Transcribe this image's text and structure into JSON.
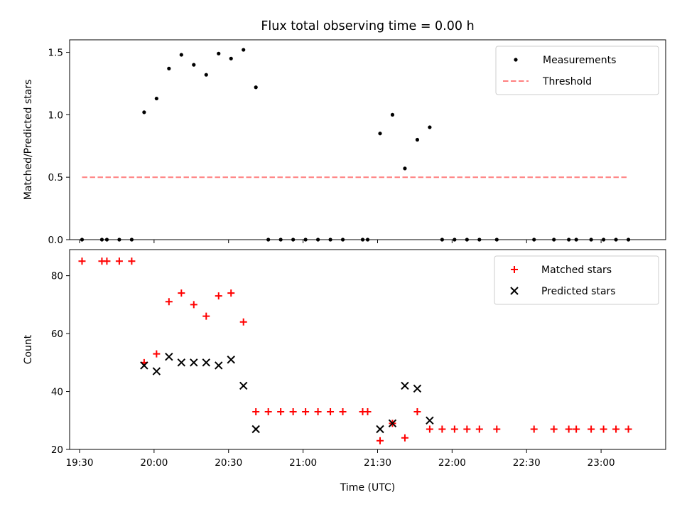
{
  "chart_data": [
    {
      "type": "scatter",
      "title": "Flux total observing time = 0.00 h",
      "xlabel": "",
      "ylabel": "Matched/Predicted stars",
      "xlim": [
        "19:26",
        "23:26"
      ],
      "ylim": [
        0,
        1.6
      ],
      "yticks": [
        0.0,
        0.5,
        1.0,
        1.5
      ],
      "ytick_labels": [
        "0.0",
        "0.5",
        "1.0",
        "1.5"
      ],
      "legend_position": "top-right",
      "series": [
        {
          "name": "Measurements",
          "style": "dot",
          "color": "#000000",
          "points": [
            [
              "19:31",
              0
            ],
            [
              "19:39",
              0
            ],
            [
              "19:41",
              0
            ],
            [
              "19:46",
              0
            ],
            [
              "19:51",
              0
            ],
            [
              "19:56",
              1.02
            ],
            [
              "20:01",
              1.13
            ],
            [
              "20:06",
              1.37
            ],
            [
              "20:11",
              1.48
            ],
            [
              "20:16",
              1.4
            ],
            [
              "20:21",
              1.32
            ],
            [
              "20:26",
              1.49
            ],
            [
              "20:31",
              1.45
            ],
            [
              "20:36",
              1.52
            ],
            [
              "20:41",
              1.22
            ],
            [
              "20:46",
              0
            ],
            [
              "20:51",
              0
            ],
            [
              "20:56",
              0
            ],
            [
              "21:01",
              0
            ],
            [
              "21:06",
              0
            ],
            [
              "21:11",
              0
            ],
            [
              "21:16",
              0
            ],
            [
              "21:24",
              0
            ],
            [
              "21:26",
              0
            ],
            [
              "21:31",
              0.85
            ],
            [
              "21:36",
              1.0
            ],
            [
              "21:41",
              0.57
            ],
            [
              "21:46",
              0.8
            ],
            [
              "21:51",
              0.9
            ],
            [
              "21:56",
              0
            ],
            [
              "22:01",
              0
            ],
            [
              "22:06",
              0
            ],
            [
              "22:11",
              0
            ],
            [
              "22:18",
              0
            ],
            [
              "22:33",
              0
            ],
            [
              "22:41",
              0
            ],
            [
              "22:47",
              0
            ],
            [
              "22:50",
              0
            ],
            [
              "22:56",
              0
            ],
            [
              "23:01",
              0
            ],
            [
              "23:06",
              0
            ],
            [
              "23:11",
              0
            ]
          ]
        },
        {
          "name": "Threshold",
          "style": "dashed-line",
          "color": "#ff7f7f",
          "points": [
            [
              "19:31",
              0.5
            ],
            [
              "23:11",
              0.5
            ]
          ]
        }
      ]
    },
    {
      "type": "scatter",
      "title": "",
      "xlabel": "Time (UTC)",
      "ylabel": "Count",
      "xlim": [
        "19:26",
        "23:26"
      ],
      "ylim": [
        20,
        89
      ],
      "xticks": [
        "19:30",
        "20:00",
        "20:30",
        "21:00",
        "21:30",
        "22:00",
        "22:30",
        "23:00"
      ],
      "yticks": [
        20,
        40,
        60,
        80
      ],
      "ytick_labels": [
        "20",
        "40",
        "60",
        "80"
      ],
      "legend_position": "top-right",
      "series": [
        {
          "name": "Matched stars",
          "style": "plus",
          "color": "#ff0000",
          "points": [
            [
              "19:31",
              85
            ],
            [
              "19:39",
              85
            ],
            [
              "19:41",
              85
            ],
            [
              "19:46",
              85
            ],
            [
              "19:51",
              85
            ],
            [
              "19:56",
              50
            ],
            [
              "20:01",
              53
            ],
            [
              "20:06",
              71
            ],
            [
              "20:11",
              74
            ],
            [
              "20:16",
              70
            ],
            [
              "20:21",
              66
            ],
            [
              "20:26",
              73
            ],
            [
              "20:31",
              74
            ],
            [
              "20:36",
              64
            ],
            [
              "20:41",
              33
            ],
            [
              "20:46",
              33
            ],
            [
              "20:51",
              33
            ],
            [
              "20:56",
              33
            ],
            [
              "21:01",
              33
            ],
            [
              "21:06",
              33
            ],
            [
              "21:11",
              33
            ],
            [
              "21:16",
              33
            ],
            [
              "21:24",
              33
            ],
            [
              "21:26",
              33
            ],
            [
              "21:31",
              23
            ],
            [
              "21:36",
              29
            ],
            [
              "21:41",
              24
            ],
            [
              "21:46",
              33
            ],
            [
              "21:51",
              27
            ],
            [
              "21:56",
              27
            ],
            [
              "22:01",
              27
            ],
            [
              "22:06",
              27
            ],
            [
              "22:11",
              27
            ],
            [
              "22:18",
              27
            ],
            [
              "22:33",
              27
            ],
            [
              "22:41",
              27
            ],
            [
              "22:47",
              27
            ],
            [
              "22:50",
              27
            ],
            [
              "22:56",
              27
            ],
            [
              "23:01",
              27
            ],
            [
              "23:06",
              27
            ],
            [
              "23:11",
              27
            ]
          ]
        },
        {
          "name": "Predicted stars",
          "style": "x",
          "color": "#000000",
          "points": [
            [
              "19:56",
              49
            ],
            [
              "20:01",
              47
            ],
            [
              "20:06",
              52
            ],
            [
              "20:11",
              50
            ],
            [
              "20:16",
              50
            ],
            [
              "20:21",
              50
            ],
            [
              "20:26",
              49
            ],
            [
              "20:31",
              51
            ],
            [
              "20:36",
              42
            ],
            [
              "20:41",
              27
            ],
            [
              "21:31",
              27
            ],
            [
              "21:36",
              29
            ],
            [
              "21:41",
              42
            ],
            [
              "21:46",
              41
            ],
            [
              "21:51",
              30
            ]
          ]
        }
      ]
    }
  ]
}
